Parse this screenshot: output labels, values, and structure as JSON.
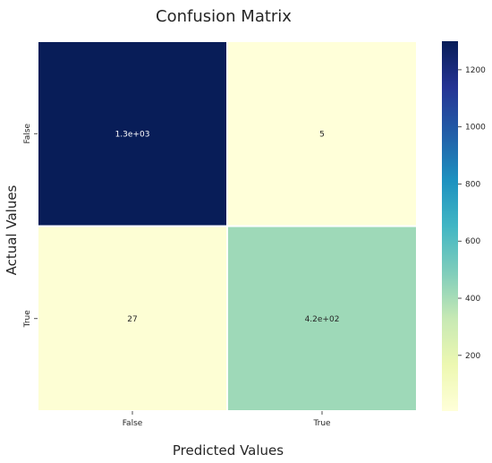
{
  "chart_data": {
    "type": "heatmap",
    "title": "Confusion Matrix",
    "xlabel": "Predicted Values",
    "ylabel": "Actual Values",
    "x_categories": [
      "False",
      "True"
    ],
    "y_categories": [
      "False",
      "True"
    ],
    "values": [
      [
        1300,
        5
      ],
      [
        27,
        420
      ]
    ],
    "annotations": [
      [
        "1.3e+03",
        "5"
      ],
      [
        "27",
        "4.2e+02"
      ]
    ],
    "colorbar": {
      "colormap": "YlGnBu",
      "range": [
        5,
        1300
      ],
      "ticks": [
        200,
        400,
        600,
        800,
        1000,
        1200
      ],
      "tick_labels": [
        "200",
        "400",
        "600",
        "800",
        "1000",
        "1200"
      ]
    }
  }
}
